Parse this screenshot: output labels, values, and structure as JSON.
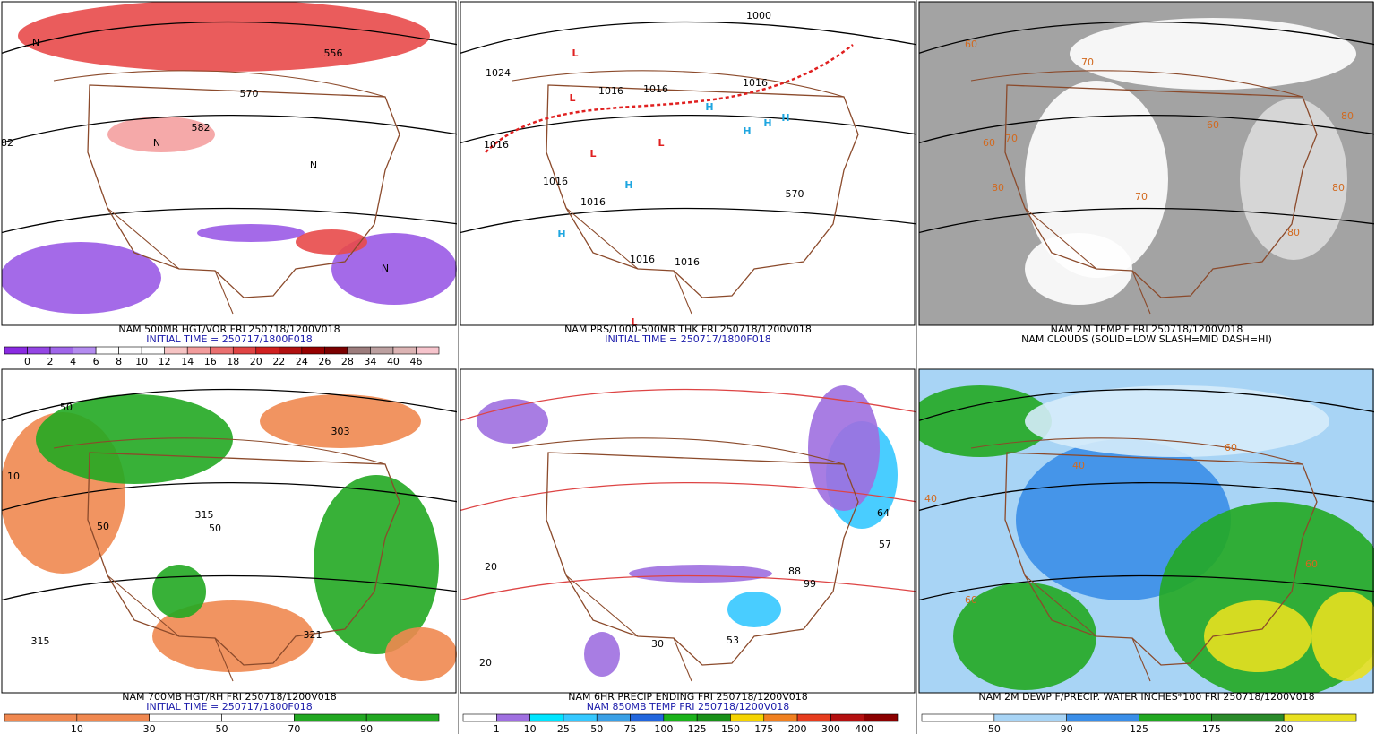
{
  "panels": [
    {
      "caption": [
        "NAM 500MB HGT/VOR FRI 250718/1200V018",
        "INITIAL TIME = 250717/1800F018"
      ],
      "colorbar": {
        "labels": [
          0,
          2,
          4,
          6,
          8,
          10,
          12,
          14,
          16,
          18,
          20,
          22,
          24,
          26,
          28,
          34,
          40,
          46
        ],
        "colors": [
          "#8a2be2",
          "#9446e4",
          "#a066ea",
          "#b48cf0",
          "#ffffff",
          "#ffffff",
          "#ffffff",
          "#f6c4c4",
          "#f29c9c",
          "#ea7070",
          "#e04444",
          "#d02020",
          "#b01010",
          "#960000",
          "#7a0000",
          "#9c7c7c",
          "#bca0a0",
          "#dcb4b4",
          "#f6c4cc"
        ]
      },
      "labels": [
        "556",
        "570",
        "582",
        "82",
        "N",
        "N",
        "N",
        "N"
      ]
    },
    {
      "caption": [
        "NAM PRS/1000-500MB THK FRI 250718/1200V018",
        "INITIAL TIME = 250717/1800F018"
      ],
      "labels": [
        "1000",
        "1024",
        "1016",
        "1016",
        "1016",
        "1016",
        "1016",
        "1016",
        "1016",
        "1016",
        "L",
        "L",
        "L",
        "L",
        "L",
        "H",
        "H",
        "H",
        "H",
        "H",
        "H",
        "570"
      ]
    },
    {
      "caption": [
        "NAM 2M TEMP F FRI 250718/1200V018",
        "NAM CLOUDS (SOLID=LOW SLASH=MID DASH=HI)"
      ],
      "labels": [
        "60",
        "70",
        "80",
        "60",
        "70",
        "80",
        "80",
        "80",
        "70",
        "60"
      ]
    },
    {
      "caption": [
        "NAM 700MB HGT/RH FRI 250718/1200V018",
        "INITIAL TIME = 250717/1800F018"
      ],
      "colorbar": {
        "labels": [
          10,
          30,
          50,
          70,
          90
        ],
        "colors": [
          "#f08850",
          "#f08850",
          "#ffffff",
          "#ffffff",
          "#22a822",
          "#22a822"
        ]
      },
      "labels": [
        "50",
        "303",
        "315",
        "321",
        "315",
        "50",
        "10",
        "50"
      ]
    },
    {
      "caption": [
        "NAM 6HR PRECIP ENDING FRI 250718/1200V018",
        "NAM 850MB TEMP FRI 250718/1200V018"
      ],
      "colorbar": {
        "labels": [
          1,
          10,
          25,
          50,
          75,
          100,
          125,
          150,
          175,
          200,
          300,
          400
        ],
        "colors": [
          "#ffffff",
          "#9f6fe0",
          "#00e5ff",
          "#35c8ff",
          "#3aa0e6",
          "#2266dd",
          "#1ab21a",
          "#189018",
          "#f5d400",
          "#f08020",
          "#e63c1e",
          "#b41010",
          "#8b0000"
        ]
      },
      "labels": [
        "20",
        "20",
        "30",
        "53",
        "64",
        "57",
        "99",
        "88"
      ]
    },
    {
      "caption": [
        "NAM 2M DEWP F/PRECIP. WATER INCHES*100 FRI 250718/1200V018"
      ],
      "colorbar": {
        "labels": [
          50,
          90,
          125,
          175,
          200
        ],
        "colors": [
          "#ffffff",
          "#a8d4f5",
          "#3a8ee8",
          "#22a822",
          "#2a8a2a",
          "#e8e020"
        ]
      },
      "labels": [
        "40",
        "60",
        "40",
        "60",
        "60"
      ]
    }
  ]
}
